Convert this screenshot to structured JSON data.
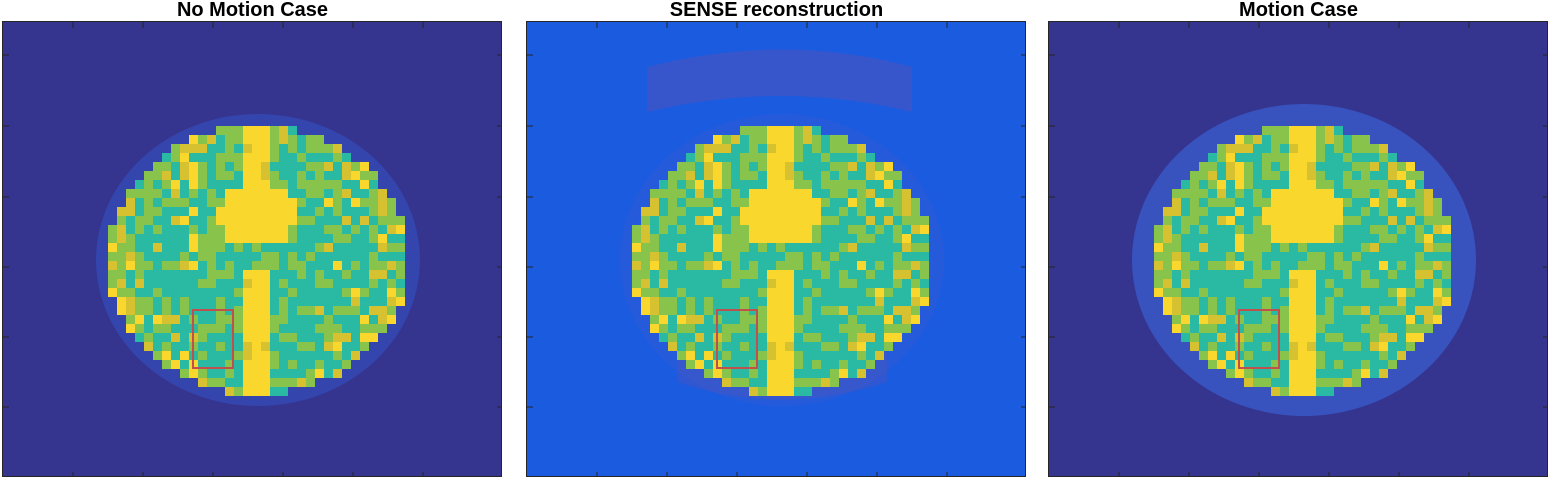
{
  "figure": {
    "panels": [
      {
        "title": "No Motion Case",
        "background": "#35348f",
        "head_tint": "none",
        "aliasing": false,
        "motion_blur": false
      },
      {
        "title": "SENSE reconstruction",
        "background": "#1a5be0",
        "head_tint": "none",
        "aliasing": true,
        "motion_blur": false
      },
      {
        "title": "Motion Case",
        "background": "#35348f",
        "head_tint": "none",
        "aliasing": false,
        "motion_blur": true
      }
    ],
    "colormap": [
      "#3e26a8",
      "#2e87f7",
      "#1aa9d8",
      "#2ab9a2",
      "#88c44c",
      "#d6c130",
      "#f9d72c"
    ],
    "roi_box_color": "#c0504d"
  }
}
